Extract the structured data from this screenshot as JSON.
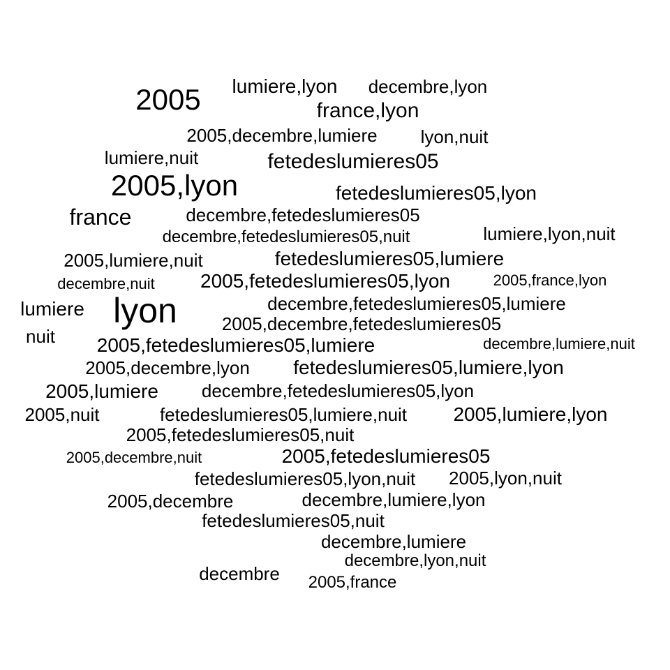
{
  "text_color": "#000000",
  "words": [
    "2005",
    "lumiere,lyon",
    "decembre,lyon",
    "france,lyon",
    "2005,decembre,lumiere",
    "lyon,nuit",
    "lumiere,nuit",
    "fetedeslumieres05",
    "2005,lyon",
    "fetedeslumieres05,lyon",
    "france",
    "decembre,fetedeslumieres05",
    "decembre,fetedeslumieres05,nuit",
    "lumiere,lyon,nuit",
    "2005,lumiere,nuit",
    "fetedeslumieres05,lumiere",
    "decembre,nuit",
    "2005,fetedeslumieres05,lyon",
    "2005,france,lyon",
    "lumiere",
    "lyon",
    "decembre,fetedeslumieres05,lumiere",
    "2005,decembre,fetedeslumieres05",
    "nuit",
    "2005,fetedeslumieres05,lumiere",
    "decembre,lumiere,nuit",
    "2005,decembre,lyon",
    "fetedeslumieres05,lumiere,lyon",
    "2005,lumiere",
    "decembre,fetedeslumieres05,lyon",
    "2005,nuit",
    "fetedeslumieres05,lumiere,nuit",
    "2005,lumiere,lyon",
    "2005,fetedeslumieres05,nuit",
    "2005,decembre,nuit",
    "2005,fetedeslumieres05",
    "fetedeslumieres05,lyon,nuit",
    "2005,lyon,nuit",
    "2005,decembre",
    "decembre,lumiere,lyon",
    "fetedeslumieres05,nuit",
    "decembre,lumiere",
    "decembre,lyon,nuit",
    "decembre",
    "2005,france"
  ]
}
